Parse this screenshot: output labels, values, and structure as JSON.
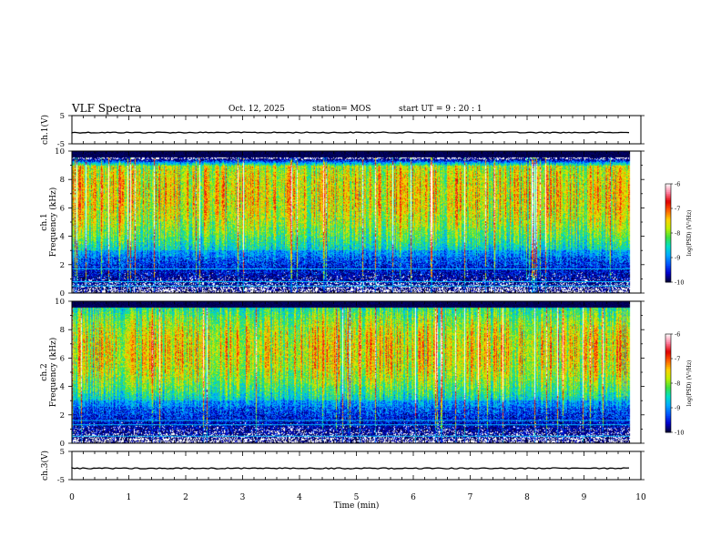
{
  "header": {
    "title": "VLF Spectra",
    "date": "Oct. 12, 2025",
    "station": "station= MOS",
    "start_ut": "start  UT =   9 : 20 : 1"
  },
  "colors": {
    "colormap": [
      "#000033",
      "#0000cc",
      "#0055ff",
      "#00aaff",
      "#00e0c8",
      "#40e040",
      "#c0f000",
      "#ffd000",
      "#ff6000",
      "#e00000",
      "#ff80a0",
      "#ffffff"
    ],
    "line": "#000000",
    "band": "#00c8ff"
  },
  "chart_data": [
    {
      "type": "line",
      "name": "ch1-waveform",
      "ylabel": "ch.1(V)",
      "ylim": [
        -5,
        5
      ],
      "yticks": [
        "5",
        "-5"
      ],
      "xlim": [
        0,
        10
      ],
      "series": [
        {
          "name": "ch.1",
          "level": -1
        }
      ]
    },
    {
      "type": "heatmap",
      "name": "ch1-spectrogram",
      "ylabel_channel": "ch.1",
      "ylabel": "Frequency (kHz)",
      "ylim": [
        0,
        10
      ],
      "yticks": [
        "0",
        "2",
        "4",
        "6",
        "8",
        "10"
      ],
      "xlim": [
        0,
        10
      ],
      "data_end_min": 9.8,
      "intense_band_khz": [
        3,
        9
      ],
      "peak_khz": 7,
      "noise_lines_khz": [
        0.5,
        0.8,
        1.7
      ],
      "colorbar": {
        "range": [
          -10,
          -6
        ],
        "ticks": [
          "-6",
          "-7",
          "-8",
          "-9",
          "-10"
        ],
        "label": "log(PSD) (V²/Hz)"
      }
    },
    {
      "type": "heatmap",
      "name": "ch2-spectrogram",
      "ylabel_channel": "ch.2",
      "ylabel": "Frequency (kHz)",
      "ylim": [
        0,
        10
      ],
      "yticks": [
        "0",
        "2",
        "4",
        "6",
        "8",
        "10"
      ],
      "xlim": [
        0,
        10
      ],
      "data_end_min": 9.8,
      "intense_band_khz": [
        3,
        9.5
      ],
      "peak_khz": 6.5,
      "noise_lines_khz": [
        0.5,
        1.3,
        1.6
      ],
      "colorbar": {
        "range": [
          -10,
          -6
        ],
        "ticks": [
          "-6",
          "-7",
          "-8",
          "-9",
          "-10"
        ],
        "label": "log(PSD) (V²/Hz)"
      }
    },
    {
      "type": "line",
      "name": "ch3-waveform",
      "ylabel": "ch.3(V)",
      "ylim": [
        -5,
        5
      ],
      "yticks": [
        "5",
        "-5"
      ],
      "xlim": [
        0,
        10
      ],
      "xlabel": "Time (min)",
      "xticks": [
        "0",
        "1",
        "2",
        "3",
        "4",
        "5",
        "6",
        "7",
        "8",
        "9",
        "10"
      ],
      "series": [
        {
          "name": "ch.3",
          "level": -1
        }
      ]
    }
  ]
}
